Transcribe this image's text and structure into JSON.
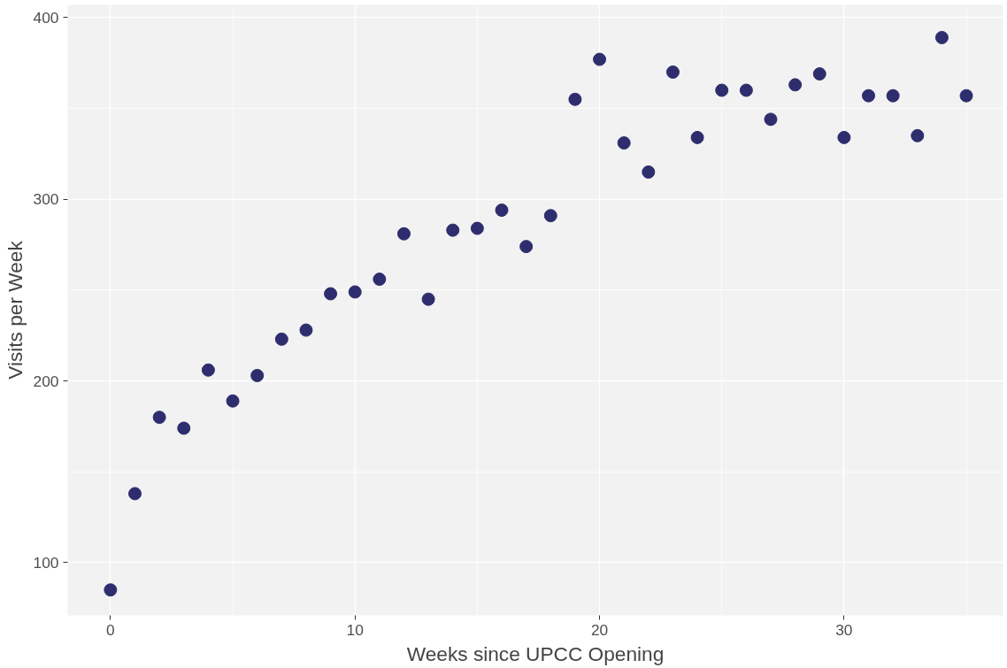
{
  "chart_data": {
    "type": "scatter",
    "xlabel": "Weeks since UPCC Opening",
    "ylabel": "Visits per Week",
    "x": [
      0,
      1,
      2,
      3,
      4,
      5,
      6,
      7,
      8,
      9,
      10,
      11,
      12,
      13,
      14,
      15,
      16,
      17,
      18,
      19,
      20,
      21,
      22,
      23,
      24,
      25,
      26,
      27,
      28,
      29,
      30,
      31,
      32,
      33,
      34,
      35
    ],
    "series": [
      {
        "color": "#2e2d6e",
        "values": [
          85,
          138,
          180,
          174,
          206,
          189,
          203,
          223,
          228,
          248,
          249,
          256,
          281,
          245,
          283,
          284,
          294,
          274,
          291,
          355,
          377,
          331,
          315,
          370,
          334,
          360,
          360,
          344,
          363,
          369,
          334,
          357,
          357,
          335,
          389,
          357
        ]
      }
    ],
    "xlim": [
      -1.75,
      36.5
    ],
    "ylim": [
      71,
      407
    ],
    "xticks": [
      0,
      10,
      20,
      30
    ],
    "yticks": [
      100,
      200,
      300,
      400
    ],
    "grid": true,
    "marker": "circle"
  }
}
